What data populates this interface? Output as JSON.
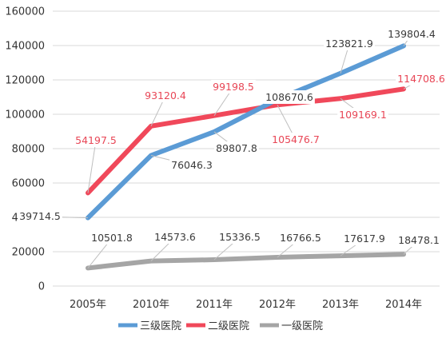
{
  "chart_data": {
    "type": "line",
    "categories": [
      "2005年",
      "2010年",
      "2011年",
      "2012年",
      "2013年",
      "2014年"
    ],
    "ylim": [
      0,
      160000
    ],
    "yticks": [
      0,
      20000,
      40000,
      60000,
      80000,
      100000,
      120000,
      140000,
      160000
    ],
    "grid": "horizontal",
    "legend_position": "bottom",
    "series": [
      {
        "name": "三级医院",
        "color": "#5b9bd5",
        "values": [
          39714.5,
          76046.3,
          89807.8,
          108670.6,
          123821.9,
          139804.4
        ],
        "labels": [
          "39714.5",
          "76046.3",
          "89807.8",
          "108670.6",
          "123821.9",
          "139804.4"
        ]
      },
      {
        "name": "二级医院",
        "color": "#f0485a",
        "values": [
          54197.5,
          93120.4,
          99198.5,
          105476.7,
          109169.1,
          114708.6
        ],
        "labels": [
          "54197.5",
          "93120.4",
          "99198.5",
          "105476.7",
          "109169.1",
          "114708.6"
        ]
      },
      {
        "name": "一级医院",
        "color": "#a5a5a5",
        "values": [
          10501.8,
          14573.6,
          15336.5,
          16766.5,
          17617.9,
          18478.1
        ],
        "labels": [
          "10501.8",
          "14573.6",
          "15336.5",
          "16766.5",
          "17617.9",
          "18478.1"
        ]
      }
    ]
  }
}
